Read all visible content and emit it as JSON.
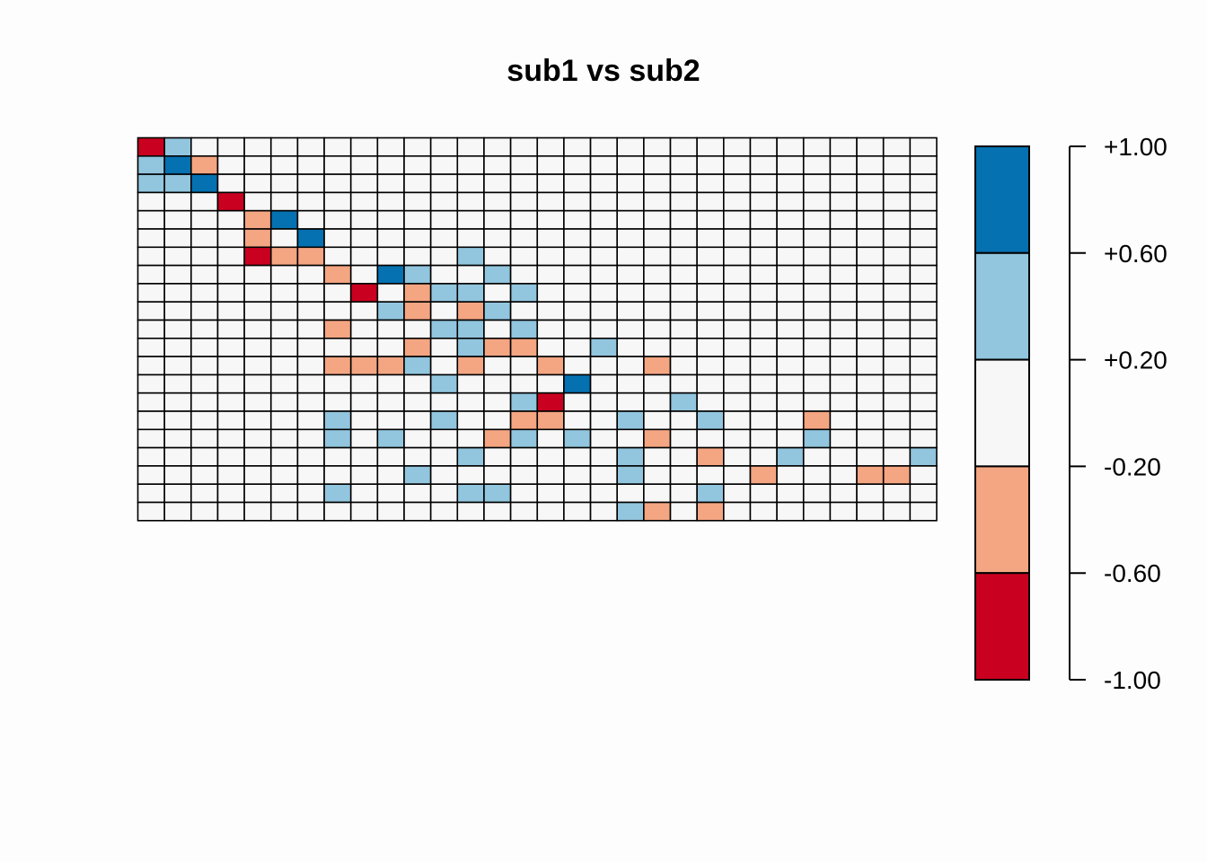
{
  "chart_data": {
    "type": "heatmap",
    "title": "sub1 vs sub2",
    "xlabel": "",
    "ylabel": "",
    "n_rows": 21,
    "n_cols": 30,
    "color_breaks": [
      -1.0,
      -0.6,
      -0.2,
      0.2,
      0.6,
      1.0
    ],
    "colors": [
      "#ca0020",
      "#f4a582",
      "#f7f7f7",
      "#92c5de",
      "#0571b0"
    ],
    "values_note_levels": {
      "-2": "[-1.00,-0.60)",
      "-1": "[-0.60,-0.20)",
      "0": "[-0.20,+0.20)",
      "1": "[+0.20,+0.60)",
      "2": "[+0.60,+1.00]"
    },
    "values": [
      [
        -2,
        1,
        0,
        0,
        0,
        0,
        0,
        0,
        0,
        0,
        0,
        0,
        0,
        0,
        0,
        0,
        0,
        0,
        0,
        0,
        0,
        0,
        0,
        0,
        0,
        0,
        0,
        0,
        0,
        0
      ],
      [
        1,
        2,
        -1,
        0,
        0,
        0,
        0,
        0,
        0,
        0,
        0,
        0,
        0,
        0,
        0,
        0,
        0,
        0,
        0,
        0,
        0,
        0,
        0,
        0,
        0,
        0,
        0,
        0,
        0,
        0
      ],
      [
        1,
        1,
        2,
        0,
        0,
        0,
        0,
        0,
        0,
        0,
        0,
        0,
        0,
        0,
        0,
        0,
        0,
        0,
        0,
        0,
        0,
        0,
        0,
        0,
        0,
        0,
        0,
        0,
        0,
        0
      ],
      [
        0,
        0,
        0,
        -2,
        0,
        0,
        0,
        0,
        0,
        0,
        0,
        0,
        0,
        0,
        0,
        0,
        0,
        0,
        0,
        0,
        0,
        0,
        0,
        0,
        0,
        0,
        0,
        0,
        0,
        0
      ],
      [
        0,
        0,
        0,
        0,
        -1,
        2,
        0,
        0,
        0,
        0,
        0,
        0,
        0,
        0,
        0,
        0,
        0,
        0,
        0,
        0,
        0,
        0,
        0,
        0,
        0,
        0,
        0,
        0,
        0,
        0
      ],
      [
        0,
        0,
        0,
        0,
        -1,
        0,
        2,
        0,
        0,
        0,
        0,
        0,
        0,
        0,
        0,
        0,
        0,
        0,
        0,
        0,
        0,
        0,
        0,
        0,
        0,
        0,
        0,
        0,
        0,
        0
      ],
      [
        0,
        0,
        0,
        0,
        -2,
        -1,
        -1,
        0,
        0,
        0,
        0,
        0,
        1,
        0,
        0,
        0,
        0,
        0,
        0,
        0,
        0,
        0,
        0,
        0,
        0,
        0,
        0,
        0,
        0,
        0
      ],
      [
        0,
        0,
        0,
        0,
        0,
        0,
        0,
        -1,
        0,
        2,
        1,
        0,
        0,
        1,
        0,
        0,
        0,
        0,
        0,
        0,
        0,
        0,
        0,
        0,
        0,
        0,
        0,
        0,
        0,
        0
      ],
      [
        0,
        0,
        0,
        0,
        0,
        0,
        0,
        0,
        -2,
        0,
        -1,
        1,
        1,
        0,
        1,
        0,
        0,
        0,
        0,
        0,
        0,
        0,
        0,
        0,
        0,
        0,
        0,
        0,
        0,
        0
      ],
      [
        0,
        0,
        0,
        0,
        0,
        0,
        0,
        0,
        0,
        1,
        -1,
        0,
        -1,
        1,
        0,
        0,
        0,
        0,
        0,
        0,
        0,
        0,
        0,
        0,
        0,
        0,
        0,
        0,
        0,
        0
      ],
      [
        0,
        0,
        0,
        0,
        0,
        0,
        0,
        -1,
        0,
        0,
        0,
        1,
        1,
        0,
        1,
        0,
        0,
        0,
        0,
        0,
        0,
        0,
        0,
        0,
        0,
        0,
        0,
        0,
        0,
        0
      ],
      [
        0,
        0,
        0,
        0,
        0,
        0,
        0,
        0,
        0,
        0,
        -1,
        0,
        1,
        -1,
        -1,
        0,
        0,
        1,
        0,
        0,
        0,
        0,
        0,
        0,
        0,
        0,
        0,
        0,
        0,
        0
      ],
      [
        0,
        0,
        0,
        0,
        0,
        0,
        0,
        -1,
        -1,
        -1,
        1,
        0,
        -1,
        0,
        0,
        -1,
        0,
        0,
        0,
        -1,
        0,
        0,
        0,
        0,
        0,
        0,
        0,
        0,
        0,
        0
      ],
      [
        0,
        0,
        0,
        0,
        0,
        0,
        0,
        0,
        0,
        0,
        0,
        1,
        0,
        0,
        0,
        0,
        2,
        0,
        0,
        0,
        0,
        0,
        0,
        0,
        0,
        0,
        0,
        0,
        0,
        0
      ],
      [
        0,
        0,
        0,
        0,
        0,
        0,
        0,
        0,
        0,
        0,
        0,
        0,
        0,
        0,
        1,
        -2,
        0,
        0,
        0,
        0,
        1,
        0,
        0,
        0,
        0,
        0,
        0,
        0,
        0,
        0
      ],
      [
        0,
        0,
        0,
        0,
        0,
        0,
        0,
        1,
        0,
        0,
        0,
        1,
        0,
        0,
        -1,
        -1,
        0,
        0,
        1,
        0,
        0,
        1,
        0,
        0,
        0,
        -1,
        0,
        0,
        0,
        0
      ],
      [
        0,
        0,
        0,
        0,
        0,
        0,
        0,
        1,
        0,
        1,
        0,
        0,
        0,
        -1,
        1,
        0,
        1,
        0,
        0,
        -1,
        0,
        0,
        0,
        0,
        0,
        1,
        0,
        0,
        0,
        0
      ],
      [
        0,
        0,
        0,
        0,
        0,
        0,
        0,
        0,
        0,
        0,
        0,
        0,
        1,
        0,
        0,
        0,
        0,
        0,
        1,
        0,
        0,
        -1,
        0,
        0,
        1,
        0,
        0,
        0,
        0,
        1
      ],
      [
        0,
        0,
        0,
        0,
        0,
        0,
        0,
        0,
        0,
        0,
        1,
        0,
        0,
        0,
        0,
        0,
        0,
        0,
        1,
        0,
        0,
        0,
        0,
        -1,
        0,
        0,
        0,
        -1,
        -1,
        0
      ],
      [
        0,
        0,
        0,
        0,
        0,
        0,
        0,
        1,
        0,
        0,
        0,
        0,
        1,
        1,
        0,
        0,
        0,
        0,
        0,
        0,
        0,
        1,
        0,
        0,
        0,
        0,
        0,
        0,
        0,
        0
      ],
      [
        0,
        0,
        0,
        0,
        0,
        0,
        0,
        0,
        0,
        0,
        0,
        0,
        0,
        0,
        0,
        0,
        0,
        0,
        1,
        -1,
        0,
        -1,
        0,
        0,
        0,
        0,
        0,
        0,
        0,
        0
      ]
    ],
    "legend": {
      "tick_labels": [
        "+1.00",
        "+0.60",
        "+0.20",
        "-0.20",
        "-0.60",
        "-1.00"
      ]
    },
    "grid": false
  }
}
